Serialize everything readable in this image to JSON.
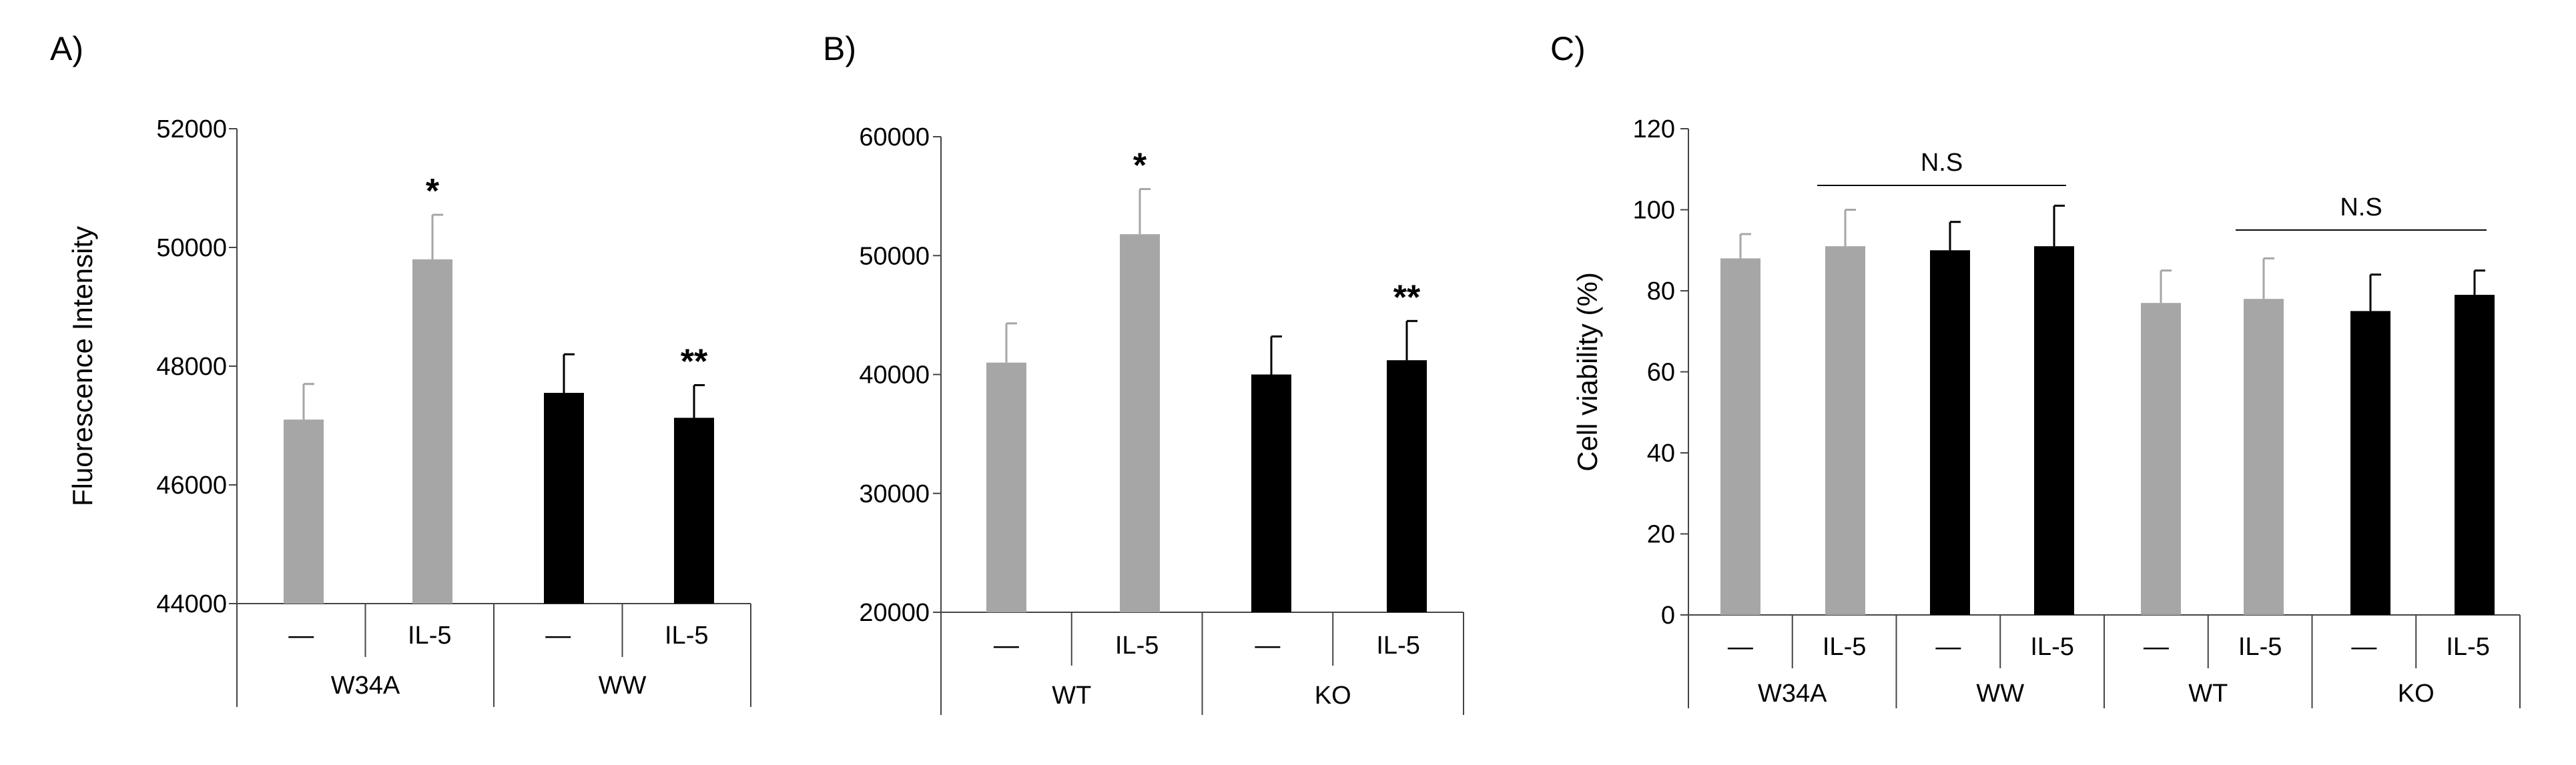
{
  "colors": {
    "gray": "#a6a6a6",
    "black": "#000000",
    "axis": "#444444"
  },
  "chart_data": [
    {
      "id": "A",
      "panel_label": "A)",
      "type": "bar",
      "ylabel": "Fluorescence Intensity",
      "ylim": [
        44000,
        52000
      ],
      "yticks": [
        "44000",
        "46000",
        "48000",
        "50000",
        "52000"
      ],
      "bars": [
        {
          "value": 47100,
          "error": 600,
          "color": "gray",
          "label": "—",
          "sig": ""
        },
        {
          "value": 49800,
          "error": 750,
          "color": "gray",
          "label": "IL-5",
          "sig": "*"
        },
        {
          "value": 47550,
          "error": 650,
          "color": "black",
          "label": "—",
          "sig": ""
        },
        {
          "value": 47130,
          "error": 550,
          "color": "black",
          "label": "IL-5",
          "sig": "**"
        }
      ],
      "groups": [
        {
          "name": "W34A",
          "bars": [
            0,
            1
          ]
        },
        {
          "name": "WW",
          "bars": [
            2,
            3
          ]
        }
      ],
      "ns": []
    },
    {
      "id": "B",
      "panel_label": "B)",
      "type": "bar",
      "ylabel": "",
      "ylim": [
        20000,
        60000
      ],
      "yticks": [
        "20000",
        "30000",
        "40000",
        "50000",
        "60000"
      ],
      "bars": [
        {
          "value": 41000,
          "error": 3300,
          "color": "gray",
          "label": "—",
          "sig": ""
        },
        {
          "value": 51800,
          "error": 3800,
          "color": "gray",
          "label": "IL-5",
          "sig": "*"
        },
        {
          "value": 40000,
          "error": 3200,
          "color": "black",
          "label": "—",
          "sig": ""
        },
        {
          "value": 41200,
          "error": 3300,
          "color": "black",
          "label": "IL-5",
          "sig": "**"
        }
      ],
      "groups": [
        {
          "name": "WT",
          "bars": [
            0,
            1
          ]
        },
        {
          "name": "KO",
          "bars": [
            2,
            3
          ]
        }
      ],
      "ns": []
    },
    {
      "id": "C",
      "panel_label": "C)",
      "type": "bar",
      "ylabel": "Cell viability  (%)",
      "ylim": [
        0,
        120
      ],
      "yticks": [
        "0",
        "20",
        "40",
        "60",
        "80",
        "100",
        "120"
      ],
      "bars": [
        {
          "value": 88,
          "error": 6,
          "color": "gray",
          "label": "—",
          "sig": ""
        },
        {
          "value": 91,
          "error": 9,
          "color": "gray",
          "label": "IL-5",
          "sig": ""
        },
        {
          "value": 90,
          "error": 7,
          "color": "black",
          "label": "—",
          "sig": ""
        },
        {
          "value": 91,
          "error": 10,
          "color": "black",
          "label": "IL-5",
          "sig": ""
        },
        {
          "value": 77,
          "error": 8,
          "color": "gray",
          "label": "—",
          "sig": ""
        },
        {
          "value": 78,
          "error": 10,
          "color": "gray",
          "label": "IL-5",
          "sig": ""
        },
        {
          "value": 75,
          "error": 9,
          "color": "black",
          "label": "—",
          "sig": ""
        },
        {
          "value": 79,
          "error": 6,
          "color": "black",
          "label": "IL-5",
          "sig": ""
        }
      ],
      "groups": [
        {
          "name": "W34A",
          "bars": [
            0,
            1
          ]
        },
        {
          "name": "WW",
          "bars": [
            2,
            3
          ]
        },
        {
          "name": "WT",
          "bars": [
            4,
            5
          ]
        },
        {
          "name": "KO",
          "bars": [
            6,
            7
          ]
        }
      ],
      "ns": [
        {
          "text": "N.S",
          "from": 1,
          "to": 3,
          "level": 106
        },
        {
          "text": "N.S",
          "from": 5,
          "to": 7,
          "level": 95
        }
      ]
    }
  ]
}
